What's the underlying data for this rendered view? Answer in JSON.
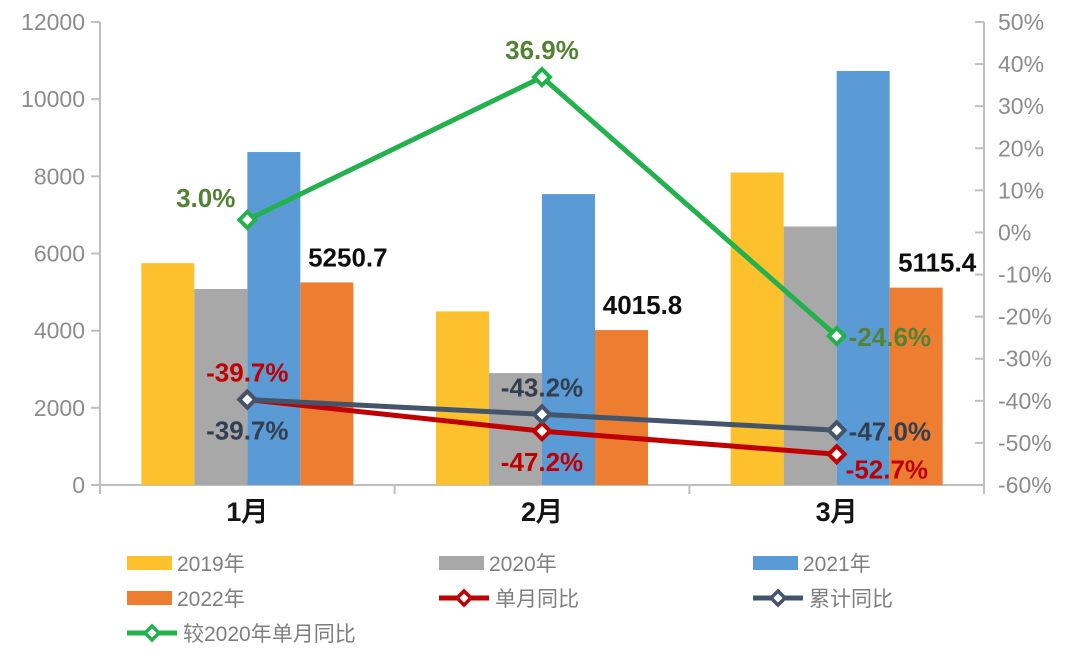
{
  "chart_data": {
    "type": "combo-bar-line",
    "title": "",
    "categories": [
      "1月",
      "2月",
      "3月"
    ],
    "bar_series": [
      {
        "name": "2019年",
        "color": "#FCC12D",
        "values": [
          5750,
          4500,
          8100
        ]
      },
      {
        "name": "2020年",
        "color": "#A8A8A8",
        "values": [
          5080,
          2900,
          6700
        ]
      },
      {
        "name": "2021年",
        "color": "#5B9BD5",
        "values": [
          8630,
          7540,
          10730
        ]
      },
      {
        "name": "2022年",
        "color": "#ED7D31",
        "values": [
          5250.7,
          4015.8,
          5115.4
        ],
        "point_labels": [
          "5250.7",
          "4015.8",
          "5115.4"
        ],
        "label_color": "#0D0D0D"
      }
    ],
    "line_series": [
      {
        "name": "单月同比",
        "color": "#C00000",
        "label_color": "#C00000",
        "values": [
          -39.7,
          -47.2,
          -52.7
        ],
        "point_labels": [
          "-39.7%",
          "-47.2%",
          "-52.7%"
        ],
        "label_pos": [
          "above",
          "below",
          "below-right"
        ]
      },
      {
        "name": "累计同比",
        "color": "#44546A",
        "label_color": "#333F50",
        "values": [
          -39.7,
          -43.2,
          -47.0
        ],
        "point_labels": [
          "-39.7%",
          "-43.2%",
          "-47.0%"
        ],
        "label_pos": [
          "below",
          "above",
          "right"
        ]
      },
      {
        "name": "较2020年单月同比",
        "color": "#22B14C",
        "label_color": "#548235",
        "values": [
          3.0,
          36.9,
          -24.6
        ],
        "point_labels": [
          "3.0%",
          "36.9%",
          "-24.6%"
        ],
        "label_pos": [
          "left-above",
          "above",
          "right"
        ]
      }
    ],
    "left_axis": {
      "min": 0,
      "max": 12000,
      "step": 2000,
      "tick_labels": [
        "0",
        "2000",
        "4000",
        "6000",
        "8000",
        "10000",
        "12000"
      ]
    },
    "right_axis": {
      "min": -60,
      "max": 50,
      "step": 10,
      "tick_labels": [
        "-60%",
        "-50%",
        "-40%",
        "-30%",
        "-20%",
        "-10%",
        "0%",
        "10%",
        "20%",
        "30%",
        "40%",
        "50%"
      ]
    },
    "axis_style": {
      "line_color": "#BFBFBF",
      "text_color": "#8C8C8C"
    },
    "grid": false,
    "legend": {
      "position": "bottom-left",
      "text_color": "#7F7F7F",
      "items": [
        {
          "label": "2019年",
          "type": "bar",
          "series": "2019年",
          "col": 0,
          "row": 0
        },
        {
          "label": "2020年",
          "type": "bar",
          "series": "2020年",
          "col": 1,
          "row": 0
        },
        {
          "label": "2021年",
          "type": "bar",
          "series": "2021年",
          "col": 2,
          "row": 0
        },
        {
          "label": "2022年",
          "type": "bar",
          "series": "2022年",
          "col": 0,
          "row": 1
        },
        {
          "label": "单月同比",
          "type": "line",
          "series": "单月同比",
          "col": 1,
          "row": 1
        },
        {
          "label": "累计同比",
          "type": "line",
          "series": "累计同比",
          "col": 2,
          "row": 1
        },
        {
          "label": "较2020年单月同比",
          "type": "line",
          "series": "较2020年单月同比",
          "col": 0,
          "row": 2
        }
      ]
    }
  }
}
